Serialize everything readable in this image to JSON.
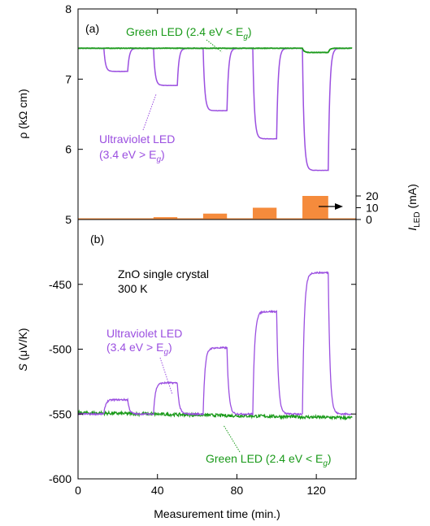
{
  "chart_data": [
    {
      "panel": "(a)",
      "type": "line",
      "ylabel": "ρ (kΩ cm)",
      "xlim": [
        0,
        140
      ],
      "ylim": [
        5,
        8
      ],
      "y_ticks": [
        5,
        6,
        7,
        8
      ],
      "colors": {
        "green": "#1a9a1a",
        "uv": "#9b4fe0",
        "bars": "#f58b3c"
      },
      "series": [
        {
          "name": "Green LED (2.4 eV < Eg)",
          "baseline": 7.44,
          "pulses": [
            {
              "on": 113,
              "off": 126,
              "value": 7.38
            }
          ]
        },
        {
          "name": "Ultraviolet LED (3.4 eV > Eg)",
          "baseline": 7.44,
          "pulses": [
            {
              "on": 13,
              "off": 25,
              "value": 7.11
            },
            {
              "on": 38,
              "off": 50,
              "value": 6.91
            },
            {
              "on": 63,
              "off": 75,
              "value": 6.55
            },
            {
              "on": 88,
              "off": 100,
              "value": 6.15
            },
            {
              "on": 113,
              "off": 126,
              "value": 5.7
            }
          ]
        }
      ],
      "secondary_axis": {
        "label": "I LED (mA)",
        "ticks": [
          0,
          10,
          20
        ],
        "bars": [
          {
            "x_start": 13,
            "x_end": 25,
            "value": 1
          },
          {
            "x_start": 38,
            "x_end": 50,
            "value": 2
          },
          {
            "x_start": 63,
            "x_end": 75,
            "value": 5
          },
          {
            "x_start": 88,
            "x_end": 100,
            "value": 10
          },
          {
            "x_start": 113,
            "x_end": 126,
            "value": 20
          }
        ]
      },
      "annotations": {
        "green_label": "Green LED (2.4 eV < E",
        "green_label_tail": ")",
        "uv_label_line1": "Ultraviolet LED",
        "uv_label_line2": "(3.4 eV > E",
        "uv_label_tail": ")",
        "subscript": "g"
      }
    },
    {
      "panel": "(b)",
      "type": "line",
      "xlabel": "Measurement time (min.)",
      "ylabel": "S (μV/K)",
      "xlim": [
        0,
        140
      ],
      "ylim": [
        -600,
        -400
      ],
      "x_ticks": [
        0,
        40,
        80,
        120
      ],
      "y_ticks": [
        -600,
        -550,
        -500,
        -450
      ],
      "colors": {
        "green": "#1a9a1a",
        "uv": "#9b4fe0"
      },
      "series": [
        {
          "name": "Ultraviolet LED (3.4 eV > Eg)",
          "baseline": -550,
          "pulses": [
            {
              "on": 13,
              "off": 25,
              "value": -539
            },
            {
              "on": 38,
              "off": 50,
              "value": -526
            },
            {
              "on": 63,
              "off": 75,
              "value": -499
            },
            {
              "on": 88,
              "off": 100,
              "value": -471
            },
            {
              "on": 113,
              "off": 126,
              "value": -441
            }
          ]
        },
        {
          "name": "Green LED (2.4 eV < Eg)",
          "baseline": -549,
          "end_value": -553,
          "pulses": []
        }
      ],
      "annotations": {
        "sample_line1": "ZnO single crystal",
        "sample_line2": "300 K",
        "uv_label_line1": "Ultraviolet LED",
        "uv_label_line2": "(3.4 eV > E",
        "uv_label_tail": ")",
        "green_label": "Green LED (2.4 eV < E",
        "green_label_tail": ")",
        "subscript": "g"
      }
    }
  ]
}
